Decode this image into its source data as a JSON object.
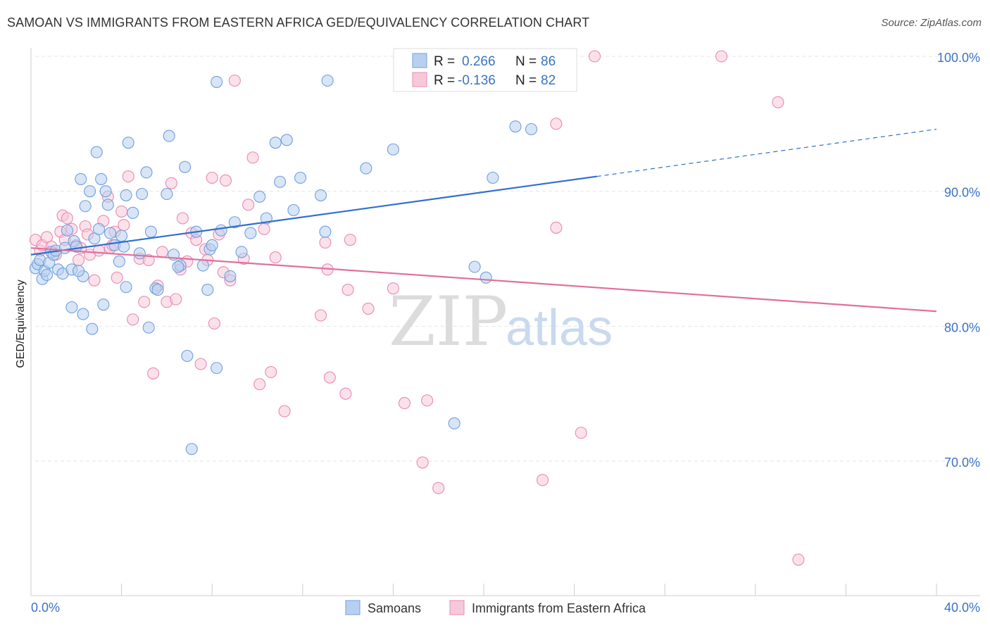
{
  "title": "SAMOAN VS IMMIGRANTS FROM EASTERN AFRICA GED/EQUIVALENCY CORRELATION CHART",
  "source": "Source: ZipAtlas.com",
  "watermark": {
    "zip": "ZIP",
    "atlas": "atlas"
  },
  "legend": {
    "r_label": "R =",
    "n_label": "N =",
    "rows": [
      {
        "r": "0.266",
        "n": "86"
      },
      {
        "r": "-0.136",
        "n": "82"
      }
    ]
  },
  "chart_data": {
    "type": "scatter",
    "title": "SAMOAN VS IMMIGRANTS FROM EASTERN AFRICA GED/EQUIVALENCY CORRELATION CHART",
    "xlabel": "",
    "ylabel": "GED/Equivalency",
    "xlim": [
      0,
      40
    ],
    "ylim": [
      60,
      102
    ],
    "x_tick_labels": [
      "0.0%",
      "40.0%"
    ],
    "y_ticks": [
      70,
      80,
      90,
      100
    ],
    "y_tick_labels": [
      "70.0%",
      "80.0%",
      "90.0%",
      "100.0%"
    ],
    "grid": true,
    "legend_position": "top-center",
    "series": [
      {
        "name": "Samoans",
        "color": "#6fa0dc",
        "fill": "#b8d0f0",
        "r": 0.266,
        "n": 86,
        "trend": {
          "x0": 0,
          "y0": 85.3,
          "x1": 25,
          "y1": 91.1,
          "dashed_to_x": 40,
          "dashed_to_y": 94.6
        },
        "points": [
          [
            0.2,
            84.3
          ],
          [
            0.3,
            84.6
          ],
          [
            0.4,
            84.9
          ],
          [
            0.5,
            83.5
          ],
          [
            0.6,
            84.1
          ],
          [
            0.7,
            83.8
          ],
          [
            0.8,
            84.7
          ],
          [
            0.9,
            85.5
          ],
          [
            1.0,
            85.3
          ],
          [
            1.1,
            85.6
          ],
          [
            1.2,
            84.2
          ],
          [
            1.4,
            83.9
          ],
          [
            1.5,
            85.8
          ],
          [
            1.6,
            87.1
          ],
          [
            1.8,
            84.2
          ],
          [
            1.9,
            86.3
          ],
          [
            2.0,
            85.9
          ],
          [
            2.2,
            90.9
          ],
          [
            2.3,
            83.7
          ],
          [
            2.4,
            88.9
          ],
          [
            2.6,
            90.0
          ],
          [
            2.8,
            86.5
          ],
          [
            2.9,
            92.9
          ],
          [
            3.0,
            87.2
          ],
          [
            3.1,
            90.9
          ],
          [
            3.3,
            90.0
          ],
          [
            3.5,
            86.9
          ],
          [
            3.7,
            86.0
          ],
          [
            3.9,
            84.8
          ],
          [
            4.0,
            86.7
          ],
          [
            4.2,
            89.7
          ],
          [
            4.3,
            93.6
          ],
          [
            4.5,
            88.4
          ],
          [
            4.8,
            85.4
          ],
          [
            4.9,
            89.8
          ],
          [
            5.1,
            91.4
          ],
          [
            5.3,
            87.0
          ],
          [
            5.5,
            82.8
          ],
          [
            6.0,
            89.8
          ],
          [
            6.1,
            94.1
          ],
          [
            6.3,
            85.3
          ],
          [
            6.6,
            84.5
          ],
          [
            6.8,
            91.8
          ],
          [
            6.9,
            77.8
          ],
          [
            7.1,
            70.9
          ],
          [
            7.3,
            87.0
          ],
          [
            7.6,
            84.5
          ],
          [
            7.8,
            82.7
          ],
          [
            7.9,
            85.7
          ],
          [
            8.0,
            86.0
          ],
          [
            8.2,
            76.9
          ],
          [
            8.4,
            87.1
          ],
          [
            8.8,
            83.7
          ],
          [
            9.0,
            87.7
          ],
          [
            9.3,
            85.5
          ],
          [
            9.7,
            86.9
          ],
          [
            10.1,
            89.6
          ],
          [
            10.4,
            88.0
          ],
          [
            10.8,
            93.6
          ],
          [
            11.0,
            90.7
          ],
          [
            11.3,
            93.8
          ],
          [
            11.6,
            88.6
          ],
          [
            11.9,
            91.0
          ],
          [
            12.8,
            89.7
          ],
          [
            13.1,
            98.2
          ],
          [
            13.0,
            87.0
          ],
          [
            14.8,
            91.7
          ],
          [
            16.0,
            93.1
          ],
          [
            18.7,
            72.8
          ],
          [
            19.6,
            84.4
          ],
          [
            20.1,
            83.6
          ],
          [
            20.4,
            91.0
          ],
          [
            21.4,
            94.8
          ],
          [
            22.1,
            94.6
          ],
          [
            8.2,
            98.1
          ],
          [
            3.4,
            89.0
          ],
          [
            4.1,
            85.9
          ],
          [
            5.2,
            79.9
          ],
          [
            3.2,
            81.6
          ],
          [
            2.7,
            79.8
          ],
          [
            2.3,
            80.9
          ],
          [
            1.8,
            81.4
          ],
          [
            5.6,
            82.7
          ],
          [
            4.2,
            82.9
          ],
          [
            6.5,
            84.4
          ],
          [
            2.1,
            84.1
          ]
        ]
      },
      {
        "name": "Immigrants from Eastern Africa",
        "color": "#e98bb0",
        "fill": "#f7c8d9",
        "r": -0.136,
        "n": 82,
        "trend": {
          "x0": 0,
          "y0": 85.8,
          "x1": 40,
          "y1": 81.1
        },
        "points": [
          [
            0.2,
            86.4
          ],
          [
            0.4,
            85.6
          ],
          [
            0.5,
            86.0
          ],
          [
            0.7,
            86.6
          ],
          [
            0.9,
            85.9
          ],
          [
            1.1,
            85.3
          ],
          [
            1.3,
            87.0
          ],
          [
            1.4,
            88.2
          ],
          [
            1.6,
            88.0
          ],
          [
            1.8,
            87.2
          ],
          [
            2.0,
            86.0
          ],
          [
            2.2,
            85.8
          ],
          [
            2.4,
            87.4
          ],
          [
            2.5,
            86.8
          ],
          [
            2.6,
            85.3
          ],
          [
            2.8,
            83.4
          ],
          [
            3.0,
            85.6
          ],
          [
            3.2,
            87.8
          ],
          [
            3.4,
            89.6
          ],
          [
            3.5,
            85.8
          ],
          [
            3.6,
            86.0
          ],
          [
            3.8,
            83.6
          ],
          [
            4.0,
            88.5
          ],
          [
            4.1,
            87.5
          ],
          [
            4.3,
            91.1
          ],
          [
            4.5,
            80.5
          ],
          [
            4.8,
            85.0
          ],
          [
            5.0,
            81.8
          ],
          [
            5.2,
            84.9
          ],
          [
            5.4,
            76.5
          ],
          [
            5.6,
            83.0
          ],
          [
            5.8,
            85.5
          ],
          [
            6.0,
            81.8
          ],
          [
            6.2,
            90.6
          ],
          [
            6.4,
            82.0
          ],
          [
            6.6,
            84.2
          ],
          [
            6.7,
            88.0
          ],
          [
            6.9,
            84.8
          ],
          [
            7.1,
            86.9
          ],
          [
            7.3,
            86.4
          ],
          [
            7.5,
            77.2
          ],
          [
            7.7,
            85.7
          ],
          [
            7.8,
            84.9
          ],
          [
            8.0,
            91.0
          ],
          [
            8.1,
            80.2
          ],
          [
            8.3,
            86.8
          ],
          [
            8.5,
            84.0
          ],
          [
            8.6,
            90.8
          ],
          [
            8.8,
            83.4
          ],
          [
            9.0,
            98.2
          ],
          [
            9.4,
            85.0
          ],
          [
            9.6,
            89.0
          ],
          [
            9.8,
            92.5
          ],
          [
            10.1,
            75.7
          ],
          [
            10.3,
            87.2
          ],
          [
            10.6,
            76.6
          ],
          [
            10.8,
            85.1
          ],
          [
            11.2,
            73.7
          ],
          [
            12.8,
            80.8
          ],
          [
            13.0,
            86.2
          ],
          [
            13.1,
            84.2
          ],
          [
            13.2,
            76.2
          ],
          [
            13.9,
            75.0
          ],
          [
            14.0,
            82.7
          ],
          [
            14.1,
            86.4
          ],
          [
            14.9,
            81.3
          ],
          [
            16.0,
            82.8
          ],
          [
            16.5,
            74.3
          ],
          [
            17.3,
            69.9
          ],
          [
            17.5,
            74.5
          ],
          [
            18.0,
            68.0
          ],
          [
            22.6,
            68.6
          ],
          [
            23.2,
            95.0
          ],
          [
            23.2,
            87.3
          ],
          [
            24.3,
            72.1
          ],
          [
            24.9,
            100.0
          ],
          [
            30.5,
            100.0
          ],
          [
            33.0,
            96.6
          ],
          [
            33.9,
            62.7
          ],
          [
            2.1,
            84.9
          ],
          [
            1.5,
            86.4
          ],
          [
            3.7,
            87.0
          ]
        ]
      }
    ]
  }
}
